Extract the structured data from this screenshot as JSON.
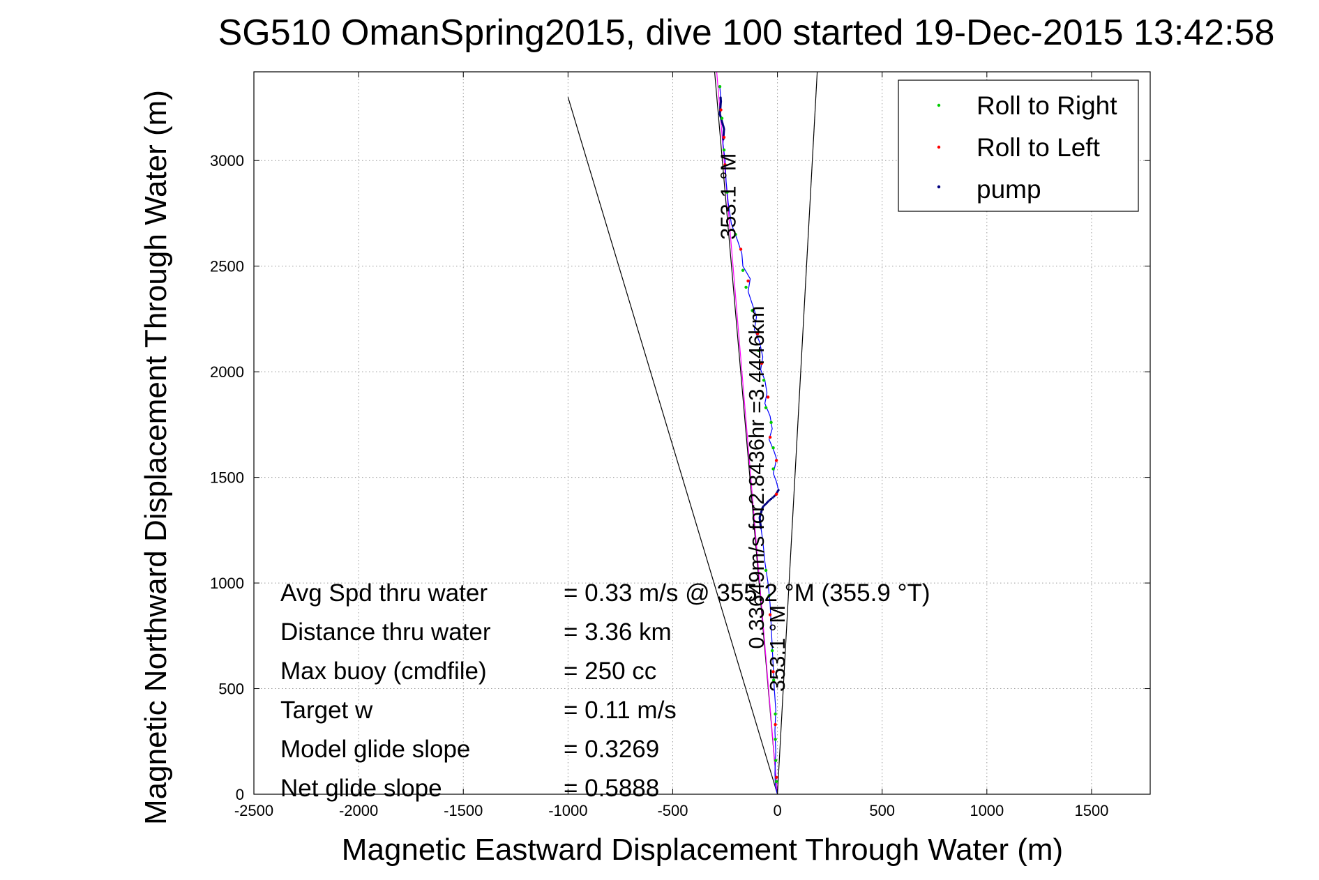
{
  "chart_data": {
    "type": "scatter",
    "title": "SG510 OmanSpring2015, dive 100 started 19-Dec-2015 13:42:58",
    "xlabel": "Magnetic Eastward Displacement Through Water (m)",
    "ylabel": "Magnetic Northward Displacement Through Water (m)",
    "xlim": [
      -2500,
      1780
    ],
    "ylim": [
      0,
      3420
    ],
    "x_ticks": [
      -2500,
      -2000,
      -1500,
      -1000,
      -500,
      0,
      500,
      1000,
      1500
    ],
    "y_ticks": [
      0,
      500,
      1000,
      1500,
      2000,
      2500,
      3000
    ],
    "grid": true,
    "legend_position": "top-right",
    "legend": [
      {
        "label": "Roll to Right",
        "color": "#00cc00"
      },
      {
        "label": "Roll to Left",
        "color": "#ff0000"
      },
      {
        "label": "pump",
        "color": "#000080"
      }
    ],
    "track": {
      "color": "#0000ff",
      "points": [
        [
          0,
          0
        ],
        [
          -10,
          40
        ],
        [
          -12,
          100
        ],
        [
          -8,
          200
        ],
        [
          -12,
          300
        ],
        [
          -8,
          400
        ],
        [
          -15,
          500
        ],
        [
          -20,
          600
        ],
        [
          -25,
          700
        ],
        [
          -30,
          800
        ],
        [
          -35,
          900
        ],
        [
          -45,
          1000
        ],
        [
          -60,
          1100
        ],
        [
          -70,
          1200
        ],
        [
          -80,
          1270
        ],
        [
          -85,
          1310
        ],
        [
          -70,
          1360
        ],
        [
          -40,
          1390
        ],
        [
          -10,
          1415
        ],
        [
          5,
          1440
        ],
        [
          -5,
          1480
        ],
        [
          -20,
          1520
        ],
        [
          -10,
          1560
        ],
        [
          -5,
          1590
        ],
        [
          -15,
          1620
        ],
        [
          -40,
          1680
        ],
        [
          -25,
          1730
        ],
        [
          -35,
          1790
        ],
        [
          -60,
          1850
        ],
        [
          -50,
          1900
        ],
        [
          -60,
          1960
        ],
        [
          -80,
          2010
        ],
        [
          -70,
          2070
        ],
        [
          -85,
          2140
        ],
        [
          -110,
          2200
        ],
        [
          -100,
          2260
        ],
        [
          -120,
          2320
        ],
        [
          -140,
          2380
        ],
        [
          -130,
          2440
        ],
        [
          -165,
          2500
        ],
        [
          -170,
          2560
        ],
        [
          -190,
          2620
        ],
        [
          -220,
          2700
        ],
        [
          -235,
          2800
        ],
        [
          -245,
          2900
        ],
        [
          -250,
          3000
        ],
        [
          -260,
          3080
        ],
        [
          -255,
          3150
        ],
        [
          -275,
          3220
        ],
        [
          -270,
          3280
        ],
        [
          -275,
          3350
        ]
      ]
    },
    "roll_right_points": [
      [
        -5,
        60
      ],
      [
        -8,
        160
      ],
      [
        -10,
        260
      ],
      [
        -10,
        380
      ],
      [
        -18,
        540
      ],
      [
        -25,
        680
      ],
      [
        -40,
        940
      ],
      [
        -55,
        1060
      ],
      [
        -20,
        1540
      ],
      [
        -20,
        1640
      ],
      [
        -30,
        1760
      ],
      [
        -55,
        1830
      ],
      [
        -65,
        1960
      ],
      [
        -90,
        2100
      ],
      [
        -120,
        2290
      ],
      [
        -150,
        2400
      ],
      [
        -165,
        2480
      ],
      [
        -200,
        2650
      ],
      [
        -240,
        2850
      ],
      [
        -255,
        3050
      ],
      [
        -265,
        3200
      ],
      [
        -275,
        3350
      ]
    ],
    "roll_left_points": [
      [
        -5,
        80
      ],
      [
        -10,
        330
      ],
      [
        -20,
        580
      ],
      [
        -35,
        850
      ],
      [
        -5,
        1420
      ],
      [
        -5,
        1580
      ],
      [
        -35,
        1690
      ],
      [
        -45,
        1880
      ],
      [
        -75,
        2040
      ],
      [
        -95,
        2180
      ],
      [
        -140,
        2430
      ],
      [
        -175,
        2580
      ],
      [
        -250,
        2980
      ],
      [
        -255,
        3110
      ],
      [
        -270,
        3240
      ]
    ],
    "pump_segments": [
      {
        "from": 1260,
        "to": 1440
      },
      {
        "from": 3100,
        "to": 3300
      }
    ],
    "reference_lines": [
      {
        "color": "#000000",
        "points": [
          [
            0,
            0
          ],
          [
            -1000,
            3300
          ]
        ]
      },
      {
        "color": "#000000",
        "points": [
          [
            0,
            0
          ],
          [
            190,
            3420
          ]
        ]
      },
      {
        "color": "#000000",
        "points": [
          [
            0,
            0
          ],
          [
            -300,
            3420
          ]
        ]
      },
      {
        "color": "#ff00ff",
        "points": [
          [
            0,
            0
          ],
          [
            -290,
            3420
          ]
        ]
      }
    ],
    "annotations": {
      "heading_upper": "353.1 °M",
      "heading_lower": "353.1 °M",
      "speed_note": "0.33649m/s for2.8436hr =3.4446km",
      "stats": [
        {
          "label": "Avg Spd thru water",
          "value": "=  0.33 m/s @ 355.2 °M (355.9 °T)"
        },
        {
          "label": "Distance thru water",
          "value": "=  3.36 km"
        },
        {
          "label": "Max buoy (cmdfile)",
          "value": "= 250 cc"
        },
        {
          "label": "Target w",
          "value": "= 0.11 m/s"
        },
        {
          "label": "Model glide slope",
          "value": "= 0.3269"
        },
        {
          "label": "Net glide slope",
          "value": "= 0.5888"
        }
      ]
    }
  }
}
